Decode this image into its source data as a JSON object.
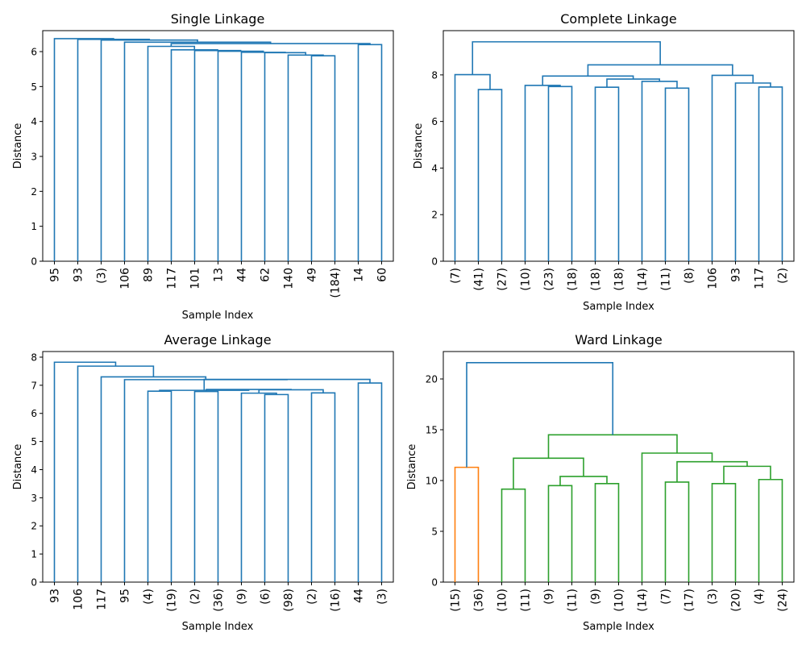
{
  "chart_data": [
    {
      "type": "dendrogram",
      "title": "Single Linkage",
      "xlabel": "Sample Index",
      "ylabel": "Distance",
      "ylim": [
        0,
        6.6
      ],
      "yticks": [
        0,
        1,
        2,
        3,
        4,
        5,
        6
      ],
      "colors": {
        "above_threshold": "#1f77b4"
      },
      "leaves": [
        "95",
        "93",
        "(3)",
        "106",
        "89",
        "117",
        "101",
        "13",
        "44",
        "62",
        "140",
        "49",
        "(184)",
        "14",
        "60"
      ],
      "merges": [
        {
          "left": 11,
          "right": 12,
          "height": 5.88,
          "color": "#1f77b4"
        },
        {
          "left": 10,
          "right": 15,
          "height": 5.9,
          "color": "#1f77b4"
        },
        {
          "left": 9,
          "right": 16,
          "height": 5.97,
          "color": "#1f77b4"
        },
        {
          "left": 8,
          "right": 17,
          "height": 5.98,
          "color": "#1f77b4"
        },
        {
          "left": 7,
          "right": 18,
          "height": 6.01,
          "color": "#1f77b4"
        },
        {
          "left": 6,
          "right": 19,
          "height": 6.03,
          "color": "#1f77b4"
        },
        {
          "left": 5,
          "right": 20,
          "height": 6.05,
          "color": "#1f77b4"
        },
        {
          "left": 4,
          "right": 21,
          "height": 6.15,
          "color": "#1f77b4"
        },
        {
          "left": 13,
          "right": 14,
          "height": 6.2,
          "color": "#1f77b4"
        },
        {
          "left": 22,
          "right": 23,
          "height": 6.23,
          "color": "#1f77b4"
        },
        {
          "left": 3,
          "right": 24,
          "height": 6.27,
          "color": "#1f77b4"
        },
        {
          "left": 2,
          "right": 25,
          "height": 6.33,
          "color": "#1f77b4"
        },
        {
          "left": 1,
          "right": 26,
          "height": 6.35,
          "color": "#1f77b4"
        },
        {
          "left": 0,
          "right": 27,
          "height": 6.37,
          "color": "#1f77b4"
        }
      ]
    },
    {
      "type": "dendrogram",
      "title": "Complete Linkage",
      "xlabel": "Sample Index",
      "ylabel": "Distance",
      "ylim": [
        0,
        9.9
      ],
      "yticks": [
        0,
        2,
        4,
        6,
        8
      ],
      "colors": {
        "above_threshold": "#1f77b4"
      },
      "leaves": [
        "(7)",
        "(41)",
        "(27)",
        "(10)",
        "(23)",
        "(18)",
        "(18)",
        "(18)",
        "(14)",
        "(11)",
        "(8)",
        "106",
        "93",
        "117",
        "(2)"
      ],
      "merges": [
        {
          "left": 1,
          "right": 2,
          "height": 7.37,
          "color": "#1f77b4"
        },
        {
          "left": 0,
          "right": 15,
          "height": 8.01,
          "color": "#1f77b4"
        },
        {
          "left": 4,
          "right": 5,
          "height": 7.5,
          "color": "#1f77b4"
        },
        {
          "left": 3,
          "right": 17,
          "height": 7.55,
          "color": "#1f77b4"
        },
        {
          "left": 6,
          "right": 7,
          "height": 7.47,
          "color": "#1f77b4"
        },
        {
          "left": 9,
          "right": 10,
          "height": 7.43,
          "color": "#1f77b4"
        },
        {
          "left": 8,
          "right": 20,
          "height": 7.72,
          "color": "#1f77b4"
        },
        {
          "left": 19,
          "right": 21,
          "height": 7.82,
          "color": "#1f77b4"
        },
        {
          "left": 18,
          "right": 22,
          "height": 7.95,
          "color": "#1f77b4"
        },
        {
          "left": 13,
          "right": 14,
          "height": 7.48,
          "color": "#1f77b4"
        },
        {
          "left": 12,
          "right": 24,
          "height": 7.65,
          "color": "#1f77b4"
        },
        {
          "left": 11,
          "right": 25,
          "height": 7.98,
          "color": "#1f77b4"
        },
        {
          "left": 23,
          "right": 26,
          "height": 8.43,
          "color": "#1f77b4"
        },
        {
          "left": 16,
          "right": 27,
          "height": 9.42,
          "color": "#1f77b4"
        }
      ]
    },
    {
      "type": "dendrogram",
      "title": "Average Linkage",
      "xlabel": "Sample Index",
      "ylabel": "Distance",
      "ylim": [
        0,
        8.2
      ],
      "yticks": [
        0,
        1,
        2,
        3,
        4,
        5,
        6,
        7,
        8
      ],
      "colors": {
        "above_threshold": "#1f77b4"
      },
      "leaves": [
        "93",
        "106",
        "117",
        "95",
        "(4)",
        "(19)",
        "(2)",
        "(36)",
        "(9)",
        "(6)",
        "(98)",
        "(2)",
        "(16)",
        "44",
        "(3)"
      ],
      "merges": [
        {
          "left": 9,
          "right": 10,
          "height": 6.67,
          "color": "#1f77b4"
        },
        {
          "left": 8,
          "right": 15,
          "height": 6.72,
          "color": "#1f77b4"
        },
        {
          "left": 11,
          "right": 12,
          "height": 6.73,
          "color": "#1f77b4"
        },
        {
          "left": 6,
          "right": 7,
          "height": 6.78,
          "color": "#1f77b4"
        },
        {
          "left": 4,
          "right": 5,
          "height": 6.79,
          "color": "#1f77b4"
        },
        {
          "left": 16,
          "right": 17,
          "height": 6.84,
          "color": "#1f77b4"
        },
        {
          "left": 18,
          "right": 20,
          "height": 6.85,
          "color": "#1f77b4"
        },
        {
          "left": 19,
          "right": 21,
          "height": 6.82,
          "color": "#1f77b4"
        },
        {
          "left": 13,
          "right": 14,
          "height": 7.08,
          "color": "#1f77b4"
        },
        {
          "left": 22,
          "right": 23,
          "height": 7.21,
          "color": "#1f77b4"
        },
        {
          "left": 3,
          "right": 24,
          "height": 7.2,
          "color": "#1f77b4"
        },
        {
          "left": 2,
          "right": 25,
          "height": 7.3,
          "color": "#1f77b4"
        },
        {
          "left": 1,
          "right": 26,
          "height": 7.68,
          "color": "#1f77b4"
        },
        {
          "left": 0,
          "right": 27,
          "height": 7.82,
          "color": "#1f77b4"
        }
      ]
    },
    {
      "type": "dendrogram",
      "title": "Ward Linkage",
      "xlabel": "Sample Index",
      "ylabel": "Distance",
      "ylim": [
        0,
        22.7
      ],
      "yticks": [
        0,
        5,
        10,
        15,
        20
      ],
      "colors": {
        "above_threshold": "#1f77b4",
        "cluster_1": "#ff7f0e",
        "cluster_2": "#2ca02c"
      },
      "leaves": [
        "(15)",
        "(36)",
        "(10)",
        "(11)",
        "(9)",
        "(11)",
        "(9)",
        "(10)",
        "(14)",
        "(7)",
        "(17)",
        "(3)",
        "(20)",
        "(4)",
        "(24)"
      ],
      "merges": [
        {
          "left": 0,
          "right": 1,
          "height": 11.3,
          "color": "#ff7f0e"
        },
        {
          "left": 2,
          "right": 3,
          "height": 9.15,
          "color": "#2ca02c"
        },
        {
          "left": 4,
          "right": 5,
          "height": 9.5,
          "color": "#2ca02c"
        },
        {
          "left": 6,
          "right": 7,
          "height": 9.7,
          "color": "#2ca02c"
        },
        {
          "left": 17,
          "right": 18,
          "height": 10.4,
          "color": "#2ca02c"
        },
        {
          "left": 16,
          "right": 19,
          "height": 12.2,
          "color": "#2ca02c"
        },
        {
          "left": 9,
          "right": 10,
          "height": 9.85,
          "color": "#2ca02c"
        },
        {
          "left": 11,
          "right": 12,
          "height": 9.7,
          "color": "#2ca02c"
        },
        {
          "left": 13,
          "right": 14,
          "height": 10.1,
          "color": "#2ca02c"
        },
        {
          "left": 22,
          "right": 23,
          "height": 11.4,
          "color": "#2ca02c"
        },
        {
          "left": 21,
          "right": 24,
          "height": 11.85,
          "color": "#2ca02c"
        },
        {
          "left": 8,
          "right": 25,
          "height": 12.7,
          "color": "#2ca02c"
        },
        {
          "left": 20,
          "right": 26,
          "height": 14.5,
          "color": "#2ca02c"
        },
        {
          "left": 15,
          "right": 27,
          "height": 21.6,
          "color": "#1f77b4"
        }
      ]
    }
  ]
}
